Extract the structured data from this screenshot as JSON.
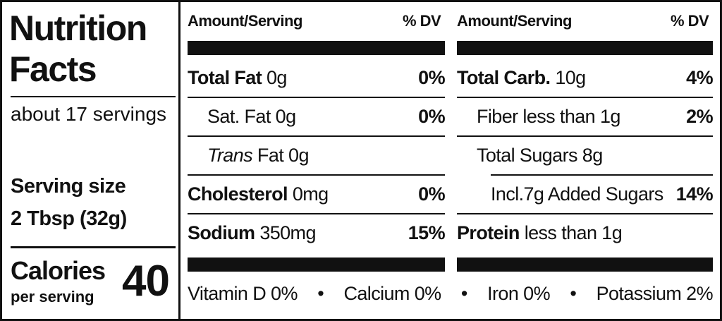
{
  "title": "Nutrition Facts",
  "servings": "about 17 servings",
  "serving_size_label": "Serving size",
  "serving_size": "2 Tbsp (32g)",
  "calories_label": "Calories",
  "calories_sub": "per serving",
  "calories": "40",
  "columns": [
    {
      "header": "Amount/Serving",
      "dv_header": "% DV",
      "rows": [
        {
          "name": "Total Fat",
          "amount": "0g",
          "dv": "0%"
        },
        {
          "name": "Sat. Fat",
          "amount": "0g",
          "dv": "0%",
          "sub": true
        },
        {
          "italic": "Trans",
          "name": "Fat",
          "amount": "0g",
          "sub": true
        },
        {
          "name": "Cholesterol",
          "amount": "0mg",
          "dv": "0%"
        },
        {
          "name": "Sodium",
          "amount": "350mg",
          "dv": "15%"
        }
      ]
    },
    {
      "header": "Amount/Serving",
      "dv_header": "% DV",
      "rows": [
        {
          "name": "Total Carb.",
          "amount": "10g",
          "dv": "4%"
        },
        {
          "name": "Fiber less than 1g",
          "dv": "2%",
          "sub": true
        },
        {
          "name": "Total Sugars 8g",
          "sub": true
        },
        {
          "name": "Incl.7g Added Sugars",
          "dv": "14%",
          "sub": true,
          "deep": true
        },
        {
          "name": "Protein",
          "amount": "less than 1g"
        }
      ]
    }
  ],
  "vitamins": [
    "Vitamin D 0%",
    "Calcium 0%",
    "Iron 0%",
    "Potassium 2%"
  ]
}
